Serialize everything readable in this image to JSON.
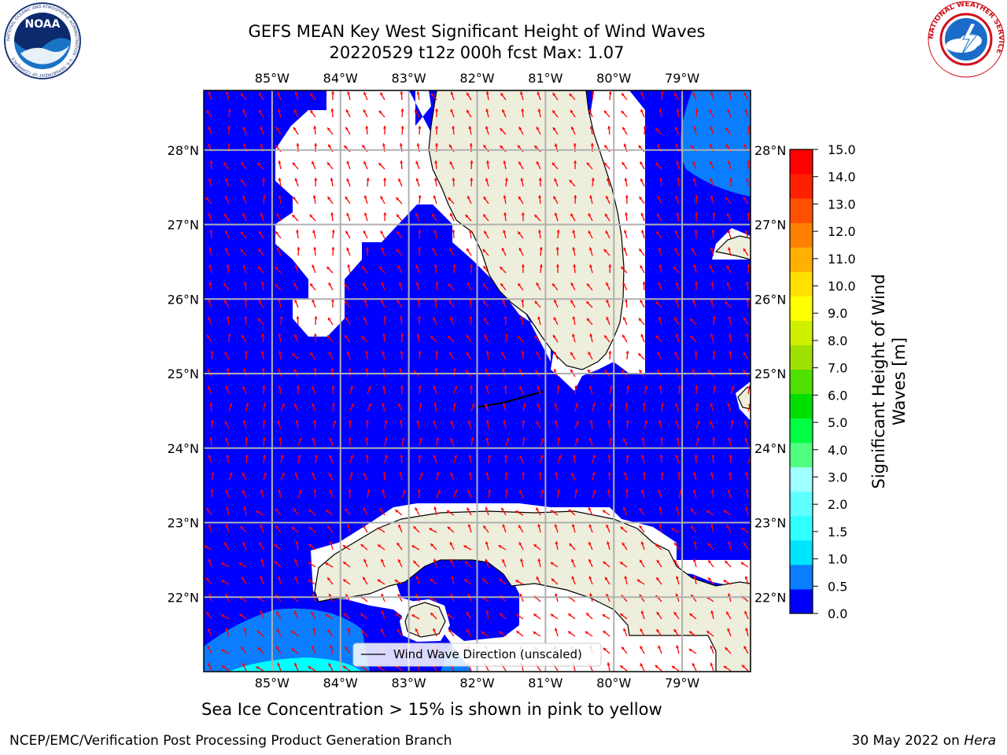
{
  "header": {
    "title_line1": "GEFS MEAN Key West Significant Height of Wind Waves",
    "title_line2": "20220529 t12z 000h fcst   Max: 1.07"
  },
  "logos": {
    "noaa_text": "NOAA",
    "noaa_ring_text": "NATIONAL OCEANIC AND ATMOSPHERIC ADMINISTRATION · U.S. DEPARTMENT OF COMMERCE",
    "nws_ring_text": "NATIONAL WEATHER SERVICE"
  },
  "map": {
    "lon_labels": [
      "85°W",
      "84°W",
      "83°W",
      "82°W",
      "81°W",
      "80°W",
      "79°W"
    ],
    "lat_labels": [
      "28°N",
      "27°N",
      "26°N",
      "25°N",
      "24°N",
      "23°N",
      "22°N"
    ],
    "lon_range": [
      -86.0,
      -78.0
    ],
    "lat_range": [
      21.0,
      28.8
    ],
    "legend_label": "Wind Wave Direction (unscaled)",
    "colors": {
      "ocean_low": "#0000ff",
      "ocean_mid": "#0a7eff",
      "ocean_cyan": "#00ffff",
      "land": "#eeeedc",
      "arrow": "#ff0000",
      "grid": "#b0b0b0"
    }
  },
  "colorbar": {
    "label": "Significant Height of Wind Waves [m]",
    "label_line1": "Significant Height of Wind",
    "label_line2": "Waves [m]",
    "ticks": [
      "15.0",
      "14.0",
      "13.0",
      "12.0",
      "11.0",
      "10.0",
      "9.0",
      "8.0",
      "7.0",
      "6.0",
      "5.0",
      "4.0",
      "3.0",
      "2.0",
      "1.5",
      "1.0",
      "0.5",
      "0.0"
    ],
    "colors": [
      "#0000ff",
      "#0a7eff",
      "#00e4ff",
      "#30ffff",
      "#60ffff",
      "#a0ffff",
      "#50ff80",
      "#00ff40",
      "#00e000",
      "#50e000",
      "#a0e000",
      "#d0f000",
      "#ffff00",
      "#ffe000",
      "#ffb000",
      "#ff8000",
      "#ff5000",
      "#ff2000",
      "#ff0000"
    ]
  },
  "caption": "Sea Ice Concentration > 15% is shown in pink to yellow",
  "footer": {
    "left": "NCEP/EMC/Verification Post Processing Product Generation Branch",
    "date": "30 May 2022 on ",
    "machine": "Hera"
  }
}
